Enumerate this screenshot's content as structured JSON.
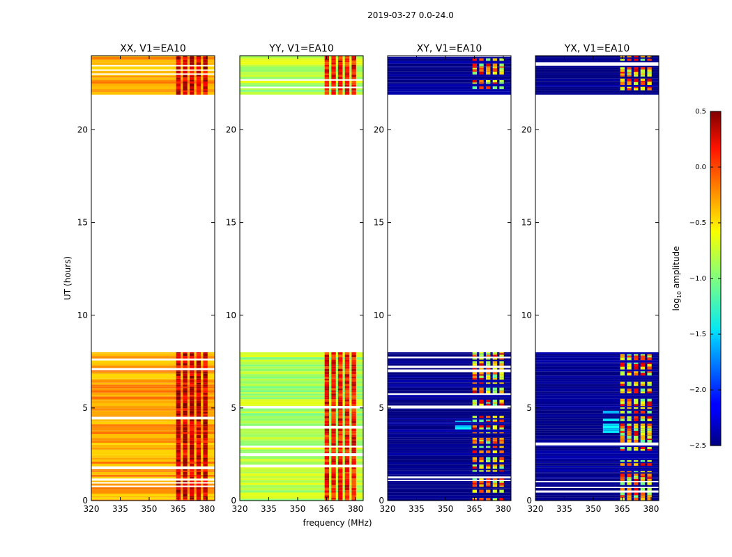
{
  "figure_title": "2019-03-27 0.0-24.0",
  "chart_data": [
    {
      "type": "heatmap",
      "title": "XX, V1=EA10",
      "xlabel": "",
      "ylabel": "UT (hours)",
      "xlim": [
        320,
        384
      ],
      "ylim": [
        0,
        24
      ],
      "xticks": [
        320,
        335,
        350,
        365,
        380
      ],
      "yticks": [
        0,
        5,
        10,
        15,
        20
      ],
      "kind": "parallel",
      "base_level": -0.35,
      "band_level": 0.25
    },
    {
      "type": "heatmap",
      "title": "YY, V1=EA10",
      "xlabel": "frequency (MHz)",
      "ylabel": "",
      "xlim": [
        320,
        384
      ],
      "ylim": [
        0,
        24
      ],
      "xticks": [
        320,
        335,
        350,
        365,
        380
      ],
      "yticks": [
        0,
        5,
        10,
        15,
        20
      ],
      "kind": "parallel",
      "base_level": -0.85,
      "band_level": 0.1
    },
    {
      "type": "heatmap",
      "title": "XY, V1=EA10",
      "xlabel": "",
      "ylabel": "",
      "xlim": [
        320,
        384
      ],
      "ylim": [
        0,
        24
      ],
      "xticks": [
        320,
        335,
        350,
        365,
        380
      ],
      "yticks": [
        0,
        5,
        10,
        15,
        20
      ],
      "kind": "cross",
      "base_level": -2.5,
      "band_level": -0.4
    },
    {
      "type": "heatmap",
      "title": "YX, V1=EA10",
      "xlabel": "",
      "ylabel": "",
      "xlim": [
        320,
        384
      ],
      "ylim": [
        0,
        24
      ],
      "xticks": [
        320,
        335,
        350,
        365,
        380
      ],
      "yticks": [
        0,
        5,
        10,
        15,
        20
      ],
      "kind": "cross",
      "base_level": -2.5,
      "band_level": -0.4
    }
  ],
  "data_segments_ut_hours": [
    [
      0.0,
      8.0
    ],
    [
      21.9,
      24.0
    ]
  ],
  "bright_band_mhz": [
    363.5,
    381.0
  ],
  "colorbar": {
    "label": "log",
    "label_sub": "10",
    "label_rest": " amplitude",
    "range": [
      -2.5,
      0.5
    ],
    "ticks": [
      0.5,
      0.0,
      -0.5,
      -1.0,
      -1.5,
      -2.0,
      -2.5
    ],
    "tick_labels": [
      "0.5",
      "0.0",
      "−0.5",
      "−1.0",
      "−1.5",
      "−2.0",
      "−2.5"
    ]
  }
}
